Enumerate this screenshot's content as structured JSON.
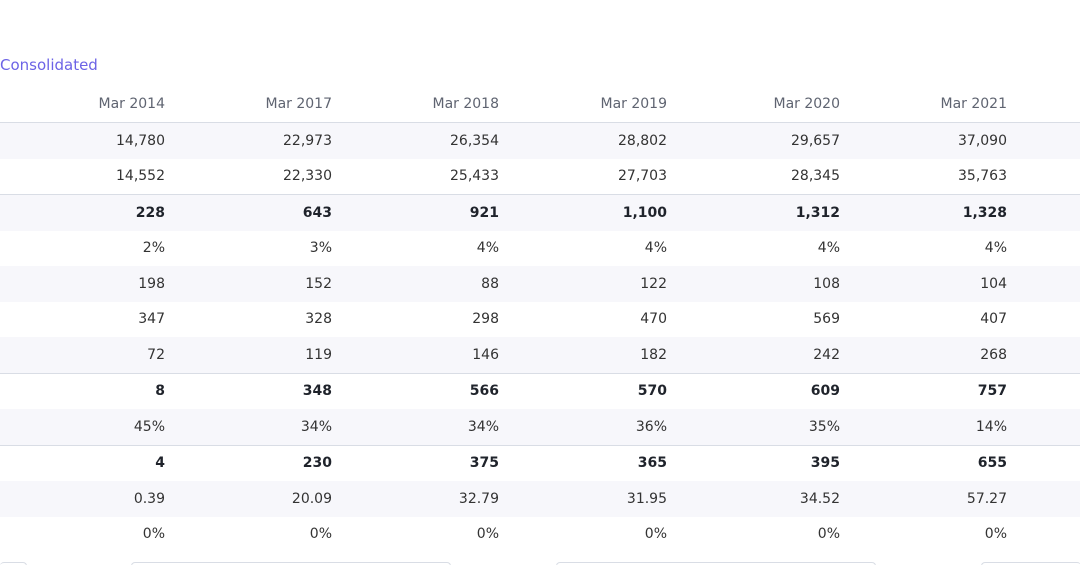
{
  "consolidated_label": "Consolidated",
  "columns": [
    "Mar 2014",
    "Mar 2017",
    "Mar 2018",
    "Mar 2019",
    "Mar 2020",
    "Mar 2021"
  ],
  "rows": [
    {
      "values": [
        "14,780",
        "22,973",
        "26,354",
        "28,802",
        "29,657",
        "37,090"
      ],
      "bold": false
    },
    {
      "values": [
        "14,552",
        "22,330",
        "25,433",
        "27,703",
        "28,345",
        "35,763"
      ],
      "bold": false
    },
    {
      "values": [
        "228",
        "643",
        "921",
        "1,100",
        "1,312",
        "1,328"
      ],
      "bold": true
    },
    {
      "values": [
        "2%",
        "3%",
        "4%",
        "4%",
        "4%",
        "4%"
      ],
      "bold": false
    },
    {
      "values": [
        "198",
        "152",
        "88",
        "122",
        "108",
        "104"
      ],
      "bold": false
    },
    {
      "values": [
        "347",
        "328",
        "298",
        "470",
        "569",
        "407"
      ],
      "bold": false
    },
    {
      "values": [
        "72",
        "119",
        "146",
        "182",
        "242",
        "268"
      ],
      "bold": false
    },
    {
      "values": [
        "8",
        "348",
        "566",
        "570",
        "609",
        "757"
      ],
      "bold": true
    },
    {
      "values": [
        "45%",
        "34%",
        "34%",
        "36%",
        "35%",
        "14%"
      ],
      "bold": false
    },
    {
      "values": [
        "4",
        "230",
        "375",
        "365",
        "395",
        "655"
      ],
      "bold": true
    },
    {
      "values": [
        "0.39",
        "20.09",
        "32.79",
        "31.95",
        "34.52",
        "57.27"
      ],
      "bold": false
    },
    {
      "values": [
        "0%",
        "0%",
        "0%",
        "0%",
        "0%",
        "0%"
      ],
      "bold": false
    }
  ]
}
